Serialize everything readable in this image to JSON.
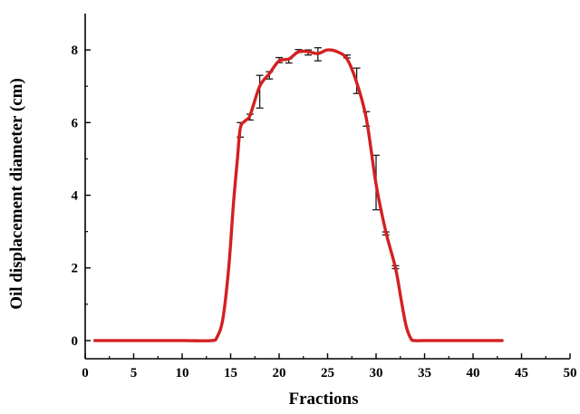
{
  "chart_data": {
    "type": "line",
    "title": "",
    "xlabel": "Fractions",
    "ylabel": "Oil displacement diameter (cm)",
    "xlim": [
      0,
      50
    ],
    "ylim": [
      -0.5,
      9
    ],
    "xticks": [
      0,
      5,
      10,
      15,
      20,
      25,
      30,
      35,
      40,
      45,
      50
    ],
    "xtick_labels": [
      "0",
      "5",
      "10",
      "15",
      "20",
      "25",
      "30",
      "35",
      "40",
      "45",
      "50"
    ],
    "yticks": [
      0,
      2,
      4,
      6,
      8
    ],
    "ytick_labels": [
      "0",
      "2",
      "4",
      "6",
      "8"
    ],
    "grid": false,
    "line_color": "#d42020",
    "errorbar_color": "#1a1a1a",
    "curve": {
      "x": [
        1,
        5,
        10,
        13,
        13.6,
        14.2,
        14.8,
        15.3,
        15.7,
        16,
        16.5,
        17,
        18,
        19,
        20,
        21,
        22,
        23,
        24,
        25,
        26,
        27,
        28,
        29,
        30,
        31,
        32,
        32.6,
        33.1,
        33.6,
        34,
        35,
        40,
        43
      ],
      "y": [
        0,
        0,
        0,
        0,
        0.1,
        0.6,
        2.0,
        3.8,
        5.0,
        5.85,
        6.05,
        6.2,
        7.0,
        7.35,
        7.7,
        7.75,
        7.95,
        7.95,
        7.9,
        8.0,
        7.95,
        7.75,
        7.1,
        6.1,
        4.3,
        3.0,
        2.0,
        1.1,
        0.4,
        0.05,
        0,
        0,
        0,
        0
      ]
    },
    "error_points": [
      {
        "x": 16,
        "y": 5.8,
        "err": 0.2
      },
      {
        "x": 17,
        "y": 6.15,
        "err": 0.08
      },
      {
        "x": 18,
        "y": 6.85,
        "err": 0.45
      },
      {
        "x": 19,
        "y": 7.3,
        "err": 0.1
      },
      {
        "x": 20,
        "y": 7.72,
        "err": 0.07
      },
      {
        "x": 21,
        "y": 7.7,
        "err": 0.06
      },
      {
        "x": 22,
        "y": 7.97,
        "err": 0.04
      },
      {
        "x": 23,
        "y": 7.93,
        "err": 0.07
      },
      {
        "x": 24,
        "y": 7.88,
        "err": 0.18
      },
      {
        "x": 27,
        "y": 7.82,
        "err": 0.04
      },
      {
        "x": 28,
        "y": 7.15,
        "err": 0.35
      },
      {
        "x": 29,
        "y": 6.1,
        "err": 0.2
      },
      {
        "x": 30,
        "y": 4.35,
        "err": 0.75
      },
      {
        "x": 31,
        "y": 2.95,
        "err": 0.04
      },
      {
        "x": 32,
        "y": 2.02,
        "err": 0.04
      }
    ]
  }
}
